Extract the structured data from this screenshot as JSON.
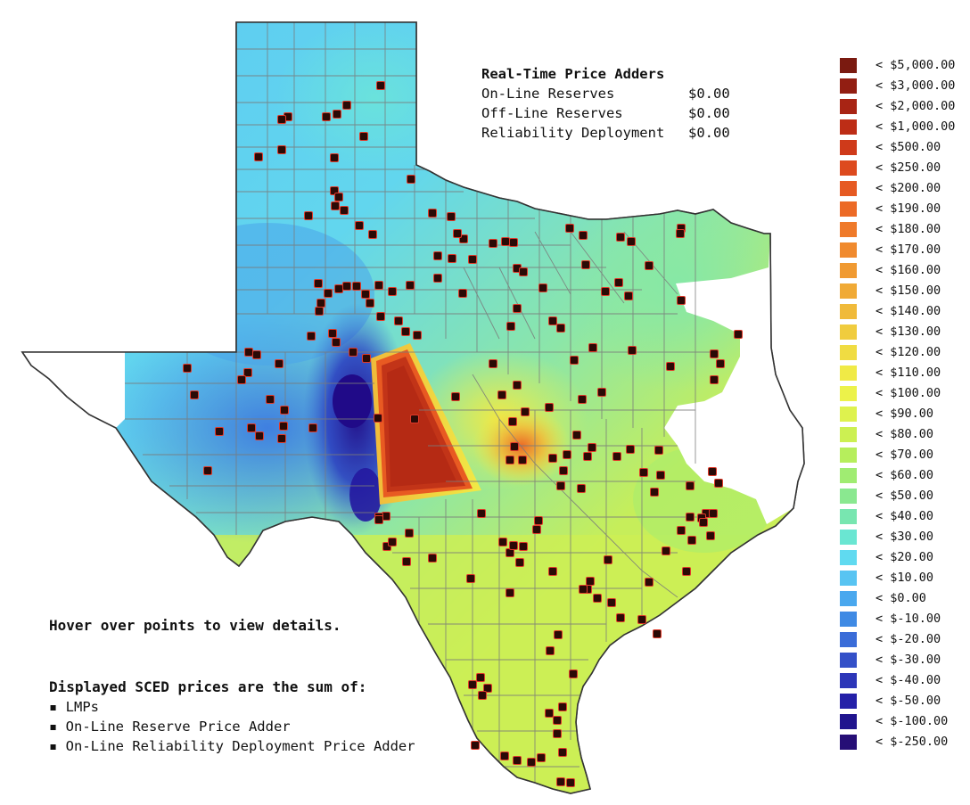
{
  "adders": {
    "title": "Real-Time Price Adders",
    "rows": [
      {
        "label": "On-Line Reserves",
        "value": "$0.00"
      },
      {
        "label": "Off-Line Reserves",
        "value": "$0.00"
      },
      {
        "label": "Reliability Deployment",
        "value": "$0.00"
      }
    ]
  },
  "hover_note": "Hover over points to view details.",
  "sced": {
    "heading": "Displayed SCED prices are the sum of:",
    "items": [
      "▪ LMPs",
      "▪ On-Line Reserve Price Adder",
      "▪ On-Line Reliability Deployment Price Adder"
    ]
  },
  "legend": [
    {
      "label": "< $5,000.00",
      "color": "#7a1a10"
    },
    {
      "label": "< $3,000.00",
      "color": "#921e12"
    },
    {
      "label": "< $2,000.00",
      "color": "#a82414"
    },
    {
      "label": "< $1,000.00",
      "color": "#bd2d16"
    },
    {
      "label": "< $500.00",
      "color": "#cf3a1a"
    },
    {
      "label": "< $250.00",
      "color": "#dd4a1e"
    },
    {
      "label": "< $200.00",
      "color": "#e65a22"
    },
    {
      "label": "< $190.00",
      "color": "#ec6a26"
    },
    {
      "label": "< $180.00",
      "color": "#ef7a2a"
    },
    {
      "label": "< $170.00",
      "color": "#f08a2e"
    },
    {
      "label": "< $160.00",
      "color": "#f09a32"
    },
    {
      "label": "< $150.00",
      "color": "#f0aa36"
    },
    {
      "label": "< $140.00",
      "color": "#f0ba3a"
    },
    {
      "label": "< $130.00",
      "color": "#f0cc3e"
    },
    {
      "label": "< $120.00",
      "color": "#f0dc42"
    },
    {
      "label": "< $110.00",
      "color": "#f0ea46"
    },
    {
      "label": "< $100.00",
      "color": "#ecf24a"
    },
    {
      "label": "< $90.00",
      "color": "#def24e"
    },
    {
      "label": "< $80.00",
      "color": "#ccf052"
    },
    {
      "label": "< $70.00",
      "color": "#b6ee5c"
    },
    {
      "label": "< $60.00",
      "color": "#a0ec72"
    },
    {
      "label": "< $50.00",
      "color": "#8ae890"
    },
    {
      "label": "< $40.00",
      "color": "#78e6b0"
    },
    {
      "label": "< $30.00",
      "color": "#6ae6d2"
    },
    {
      "label": "< $20.00",
      "color": "#60daf0"
    },
    {
      "label": "< $10.00",
      "color": "#58c4f2"
    },
    {
      "label": "< $0.00",
      "color": "#4aa8ee"
    },
    {
      "label": "< $-10.00",
      "color": "#3f8ae4"
    },
    {
      "label": "< $-20.00",
      "color": "#3a6cd8"
    },
    {
      "label": "< $-30.00",
      "color": "#3450c8"
    },
    {
      "label": "< $-40.00",
      "color": "#2c36b8"
    },
    {
      "label": "< $-50.00",
      "color": "#2420a8"
    },
    {
      "label": "< $-100.00",
      "color": "#20148e"
    },
    {
      "label": "< $-250.00",
      "color": "#260e76"
    }
  ],
  "colors": {
    "no_data": "#ffffff",
    "county_border": "#7a7a7a",
    "point_fill": "#2a0a06",
    "point_edge": "#e03a2a"
  }
}
